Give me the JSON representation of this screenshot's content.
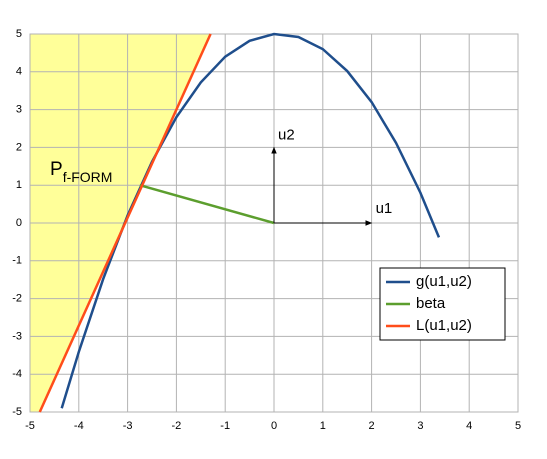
{
  "chart_data": {
    "type": "line",
    "series": [
      {
        "name": "g(u1,u2)",
        "color": "#1f4e8c",
        "x": [
          -4.35,
          -4,
          -3.5,
          -3,
          -2.5,
          -2,
          -1.5,
          -1,
          -0.5,
          0,
          0.5,
          1,
          1.5,
          2,
          2.5,
          3,
          3.38
        ],
        "values": [
          -4.9,
          -3.41,
          -1.48,
          0.2,
          1.62,
          2.8,
          3.72,
          4.4,
          4.82,
          5,
          4.92,
          4.6,
          4.02,
          3.2,
          2.12,
          0.8,
          -0.38
        ]
      },
      {
        "name": "beta",
        "color": "#5c9e2e",
        "x": [
          -2.75,
          0
        ],
        "values": [
          1,
          0
        ]
      },
      {
        "name": "L(u1,u2)",
        "color": "#ff4d1a",
        "x": [
          -4.8,
          -1.3
        ],
        "values": [
          -5,
          5
        ]
      }
    ],
    "arrows": [
      {
        "label": "u1",
        "x": [
          0,
          2
        ],
        "values": [
          0,
          0
        ]
      },
      {
        "label": "u2",
        "x": [
          0,
          0
        ],
        "values": [
          0,
          2
        ]
      }
    ],
    "shaded_region": {
      "label": "P",
      "subscript": "f-FORM",
      "color": "#ffff99"
    },
    "xlim": [
      -5,
      5
    ],
    "ylim": [
      -5,
      5
    ],
    "xticks": [
      -5,
      -4,
      -3,
      -2,
      -1,
      0,
      1,
      2,
      3,
      4,
      5
    ],
    "yticks": [
      -5,
      -4,
      -3,
      -2,
      -1,
      0,
      1,
      2,
      3,
      4,
      5
    ],
    "grid": true,
    "legend": "lower right"
  }
}
